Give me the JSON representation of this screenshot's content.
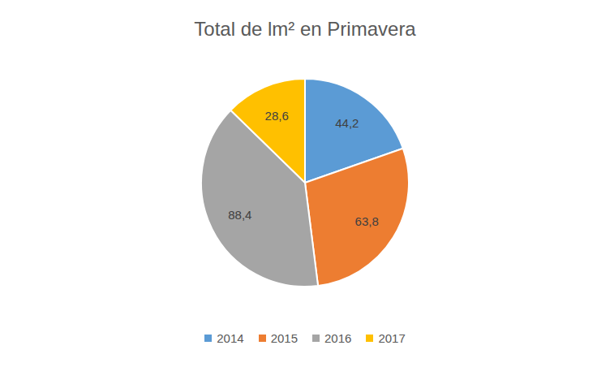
{
  "chart_data": {
    "type": "pie",
    "title": "Total de lm² en Primavera",
    "categories": [
      "2014",
      "2015",
      "2016",
      "2017"
    ],
    "values": [
      44.2,
      63.8,
      88.4,
      28.6
    ],
    "value_labels": [
      "44,2",
      "63,8",
      "88,4",
      "28,6"
    ],
    "colors": [
      "#5b9bd5",
      "#ed7d31",
      "#a5a5a5",
      "#ffc000"
    ],
    "data_labels": true,
    "legend": "bottom"
  }
}
